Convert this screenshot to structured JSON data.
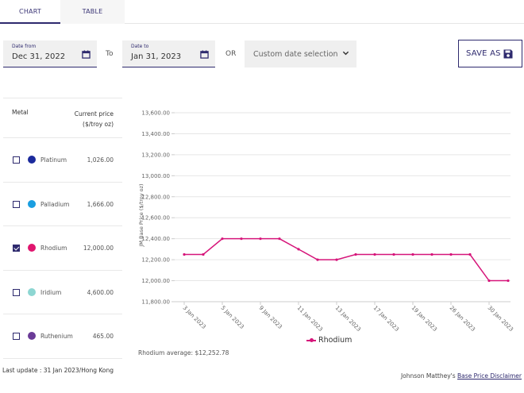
{
  "tabs": [
    {
      "label": "CHART",
      "active": true
    },
    {
      "label": "TABLE",
      "active": false
    }
  ],
  "filters": {
    "date_from": {
      "label": "Date from",
      "value": "Dec 31, 2022",
      "icon": "calendar-icon"
    },
    "to_label": "To",
    "date_to": {
      "label": "Date to",
      "value": "Jan 31, 2023",
      "icon": "calendar-icon"
    },
    "or_label": "OR",
    "custom_select": {
      "value": "Custom date selection",
      "icon": "chevron-down-icon"
    },
    "save_as": {
      "label": "SAVE AS",
      "icon": "floppy-disk-icon"
    }
  },
  "metals_table": {
    "col_metal": "Metal",
    "col_price": "Current price",
    "col_price_unit": "($/troy oz)",
    "rows": [
      {
        "name": "Platinum",
        "price": "1,026.00",
        "color": "#1b2a9c",
        "checked": false
      },
      {
        "name": "Palladium",
        "price": "1,666.00",
        "color": "#1a9ee0",
        "checked": false
      },
      {
        "name": "Rhodium",
        "price": "12,000.00",
        "color": "#e0156e",
        "checked": true
      },
      {
        "name": "Iridium",
        "price": "4,600.00",
        "color": "#8dd6d2",
        "checked": false
      },
      {
        "name": "Ruthenium",
        "price": "465.00",
        "color": "#6a3b97",
        "checked": false
      }
    ]
  },
  "last_update": "Last update : 31 Jan 2023/Hong Kong",
  "average_text": "Rhodium average: $12,252.78",
  "disclaimer": {
    "prefix": "Johnson Matthey's ",
    "link": "Base Price Disclaimer"
  },
  "chart_data": {
    "type": "line",
    "title": "",
    "xlabel": "",
    "ylabel": "JM Base Price ($/troy oz)",
    "ylim": [
      11800,
      13600
    ],
    "yticks": [
      11800,
      12000,
      12200,
      12400,
      12600,
      12800,
      13000,
      13200,
      13400,
      13600
    ],
    "ytick_labels": [
      "11,800.00",
      "12,000.00",
      "12,200.00",
      "12,400.00",
      "12,600.00",
      "12,800.00",
      "13,000.00",
      "13,200.00",
      "13,400.00",
      "13,600.00"
    ],
    "grid": true,
    "legend": "bottom-center",
    "xtick_labels": [
      "3 Jan 2023",
      "5 Jan 2023",
      "9 Jan 2023",
      "11 Jan 2023",
      "13 Jan 2023",
      "17 Jan 2023",
      "19 Jan 2023",
      "26 Jan 2023",
      "30 Jan 2023"
    ],
    "xtick_every": 2,
    "series": [
      {
        "name": "Rhodium",
        "color": "#d6157a",
        "values": [
          12250,
          12250,
          12400,
          12400,
          12400,
          12400,
          12300,
          12200,
          12200,
          12250,
          12250,
          12250,
          12250,
          12250,
          12250,
          12250,
          12000,
          12000
        ]
      }
    ]
  }
}
